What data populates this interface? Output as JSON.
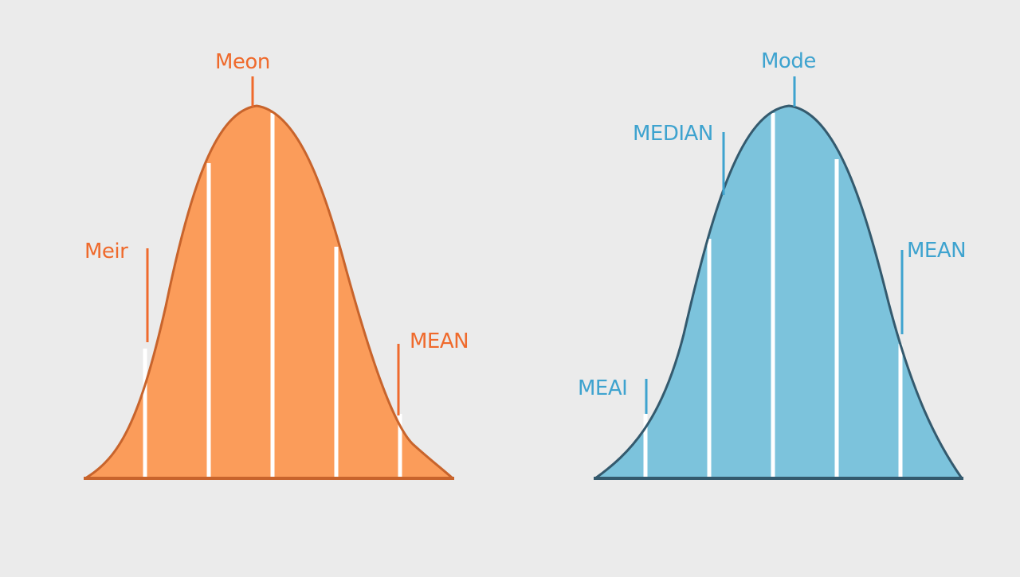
{
  "colors": {
    "background": "#ebebeb",
    "divider": "#ffffff"
  },
  "curves": [
    {
      "name": "orange-distribution",
      "fill": "#fb9c5a",
      "stroke": "#c8642c",
      "label_color": "#ef6a2c",
      "labels": [
        {
          "name": "top",
          "text": "Meon"
        },
        {
          "name": "left",
          "text": "Meir"
        },
        {
          "name": "right",
          "text": "MEAN"
        }
      ]
    },
    {
      "name": "blue-distribution",
      "fill": "#7cc3dc",
      "stroke": "#345a6e",
      "label_color": "#3ea3cf",
      "labels": [
        {
          "name": "top",
          "text": "Mode"
        },
        {
          "name": "upper-left",
          "text": "MEDIAN"
        },
        {
          "name": "right",
          "text": "MEAN"
        },
        {
          "name": "lower-left",
          "text": "MEAI"
        }
      ]
    }
  ]
}
